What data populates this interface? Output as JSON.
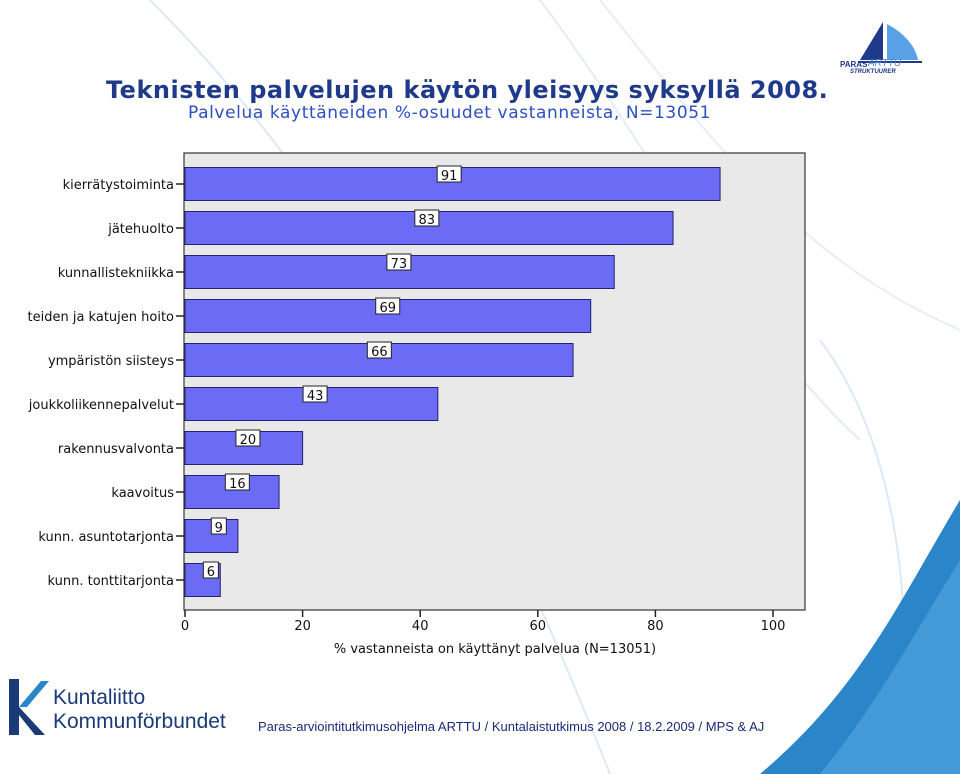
{
  "header": {
    "title": "Teknisten palvelujen käytön yleisyys syksyllä 2008.",
    "subtitle": "Palvelua käyttäneiden %-osuudet vastanneista, N=13051"
  },
  "brand": {
    "paras": "PARAS",
    "arttu": "ARTTU",
    "sub": "STRUKTUURER"
  },
  "colors": {
    "bar": "#6b6bf5",
    "bar_stroke": "#23236b",
    "plot_bg": "#e9e9e9",
    "title": "#1f3a8a",
    "accent_blue": "#2a86c8"
  },
  "chart_data": {
    "type": "bar",
    "orientation": "horizontal",
    "categories": [
      "kierrätystoiminta",
      "jätehuolto",
      "kunnallistekniikka",
      "teiden ja katujen hoito",
      "ympäristön siisteys",
      "joukkoliikennepalvelut",
      "rakennusvalvonta",
      "kaavoitus",
      "kunn. asuntotarjonta",
      "kunn. tonttitarjonta"
    ],
    "values": [
      91,
      83,
      73,
      69,
      66,
      43,
      20,
      16,
      9,
      6
    ],
    "data_labels": [
      "91",
      "83",
      "73",
      "69",
      "66",
      "43",
      "20",
      "16",
      "9",
      "6"
    ],
    "xlabel": "% vastanneista on käyttänyt palvelua (N=13051)",
    "xticks": [
      "0",
      "20",
      "40",
      "60",
      "80",
      "100"
    ],
    "xlim": [
      0,
      100
    ],
    "grid": false
  },
  "footer": {
    "logo_line1": "Kuntaliitto",
    "logo_line2": "Kommunförbundet",
    "text": "Paras-arviointitutkimusohjelma ARTTU / Kuntalaistutkimus 2008 / 18.2.2009 / MPS & AJ"
  }
}
